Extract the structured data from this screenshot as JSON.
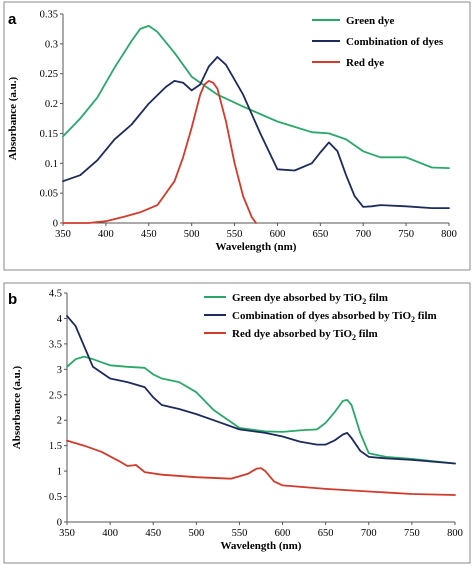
{
  "panels": [
    {
      "letter": "a"
    },
    {
      "letter": "b"
    }
  ],
  "chart_data": [
    {
      "type": "line",
      "title": "",
      "xlabel": "Wavelength (nm)",
      "ylabel": "Absorbance (a.u.)",
      "xlim": [
        350,
        800
      ],
      "ylim": [
        0,
        0.35
      ],
      "xticks": [
        "350",
        "400",
        "450",
        "500",
        "550",
        "600",
        "650",
        "700",
        "750",
        "800"
      ],
      "yticks": [
        "0",
        "0.05",
        "0.1",
        "0.15",
        "0.2",
        "0.25",
        "0.3",
        "0.35"
      ],
      "legend_position": "top-right",
      "series": [
        {
          "name": "Green dye",
          "color": "#2aa86a",
          "x": [
            350,
            370,
            390,
            410,
            430,
            440,
            450,
            460,
            480,
            500,
            530,
            560,
            600,
            640,
            660,
            680,
            700,
            720,
            750,
            780,
            800
          ],
          "y": [
            0.145,
            0.175,
            0.21,
            0.26,
            0.305,
            0.325,
            0.33,
            0.32,
            0.285,
            0.245,
            0.215,
            0.195,
            0.17,
            0.152,
            0.15,
            0.14,
            0.12,
            0.11,
            0.11,
            0.093,
            0.092
          ]
        },
        {
          "name": "Combination of dyes",
          "color": "#1d2a5c",
          "x": [
            350,
            370,
            390,
            410,
            430,
            450,
            470,
            480,
            490,
            500,
            510,
            520,
            530,
            540,
            560,
            580,
            600,
            620,
            640,
            650,
            660,
            670,
            680,
            690,
            700,
            710,
            720,
            750,
            780,
            800
          ],
          "y": [
            0.07,
            0.08,
            0.105,
            0.14,
            0.165,
            0.2,
            0.228,
            0.238,
            0.235,
            0.222,
            0.232,
            0.262,
            0.278,
            0.265,
            0.215,
            0.15,
            0.09,
            0.088,
            0.1,
            0.118,
            0.135,
            0.12,
            0.08,
            0.045,
            0.027,
            0.028,
            0.03,
            0.028,
            0.025,
            0.025
          ]
        },
        {
          "name": "Red dye",
          "color": "#d23a2c",
          "x": [
            350,
            380,
            400,
            420,
            440,
            460,
            480,
            490,
            500,
            510,
            515,
            520,
            525,
            530,
            540,
            550,
            560,
            570,
            575
          ],
          "y": [
            0,
            0,
            0.003,
            0.01,
            0.018,
            0.03,
            0.07,
            0.11,
            0.16,
            0.215,
            0.232,
            0.238,
            0.235,
            0.225,
            0.17,
            0.1,
            0.045,
            0.01,
            0
          ]
        }
      ]
    },
    {
      "type": "line",
      "title": "",
      "xlabel": "Wavelength (nm)",
      "ylabel": "Absorbance (a.u.)",
      "xlim": [
        350,
        800
      ],
      "ylim": [
        0,
        4.5
      ],
      "xticks": [
        "350",
        "400",
        "450",
        "500",
        "550",
        "600",
        "650",
        "700",
        "750",
        "800"
      ],
      "yticks": [
        "0",
        "0.5",
        "1",
        "1.5",
        "2",
        "2.5",
        "3",
        "3.5",
        "4",
        "4.5"
      ],
      "legend_position": "top-right",
      "series": [
        {
          "name": "Green dye absorbed by TiO",
          "name_subscript": "2",
          "name_suffix": " film",
          "color": "#2aa86a",
          "x": [
            350,
            360,
            370,
            380,
            400,
            420,
            440,
            450,
            460,
            480,
            500,
            520,
            550,
            580,
            600,
            620,
            640,
            650,
            660,
            670,
            675,
            680,
            690,
            700,
            720,
            750,
            800
          ],
          "y": [
            3.05,
            3.2,
            3.25,
            3.2,
            3.08,
            3.05,
            3.03,
            2.9,
            2.82,
            2.75,
            2.55,
            2.2,
            1.85,
            1.78,
            1.77,
            1.8,
            1.82,
            1.95,
            2.15,
            2.38,
            2.4,
            2.3,
            1.75,
            1.35,
            1.28,
            1.24,
            1.15
          ]
        },
        {
          "name": "Combination of dyes absorbed by TiO",
          "name_subscript": "2",
          "name_suffix": " film",
          "color": "#1d2a5c",
          "x": [
            350,
            360,
            370,
            380,
            400,
            420,
            440,
            450,
            460,
            480,
            500,
            520,
            550,
            580,
            600,
            620,
            640,
            650,
            660,
            670,
            675,
            680,
            690,
            700,
            720,
            750,
            800
          ],
          "y": [
            4.05,
            3.85,
            3.45,
            3.05,
            2.82,
            2.75,
            2.65,
            2.45,
            2.3,
            2.22,
            2.12,
            2.0,
            1.82,
            1.75,
            1.68,
            1.58,
            1.52,
            1.52,
            1.6,
            1.72,
            1.75,
            1.65,
            1.4,
            1.28,
            1.25,
            1.22,
            1.15
          ]
        },
        {
          "name": "Red dye absorbed by TiO",
          "name_subscript": "2",
          "name_suffix": " film",
          "color": "#d23a2c",
          "x": [
            350,
            370,
            390,
            410,
            420,
            430,
            440,
            460,
            500,
            540,
            560,
            570,
            575,
            580,
            590,
            600,
            650,
            700,
            750,
            800
          ],
          "y": [
            1.6,
            1.5,
            1.38,
            1.2,
            1.1,
            1.12,
            0.98,
            0.93,
            0.88,
            0.85,
            0.95,
            1.05,
            1.06,
            1.0,
            0.8,
            0.72,
            0.65,
            0.6,
            0.55,
            0.53
          ]
        }
      ]
    }
  ]
}
